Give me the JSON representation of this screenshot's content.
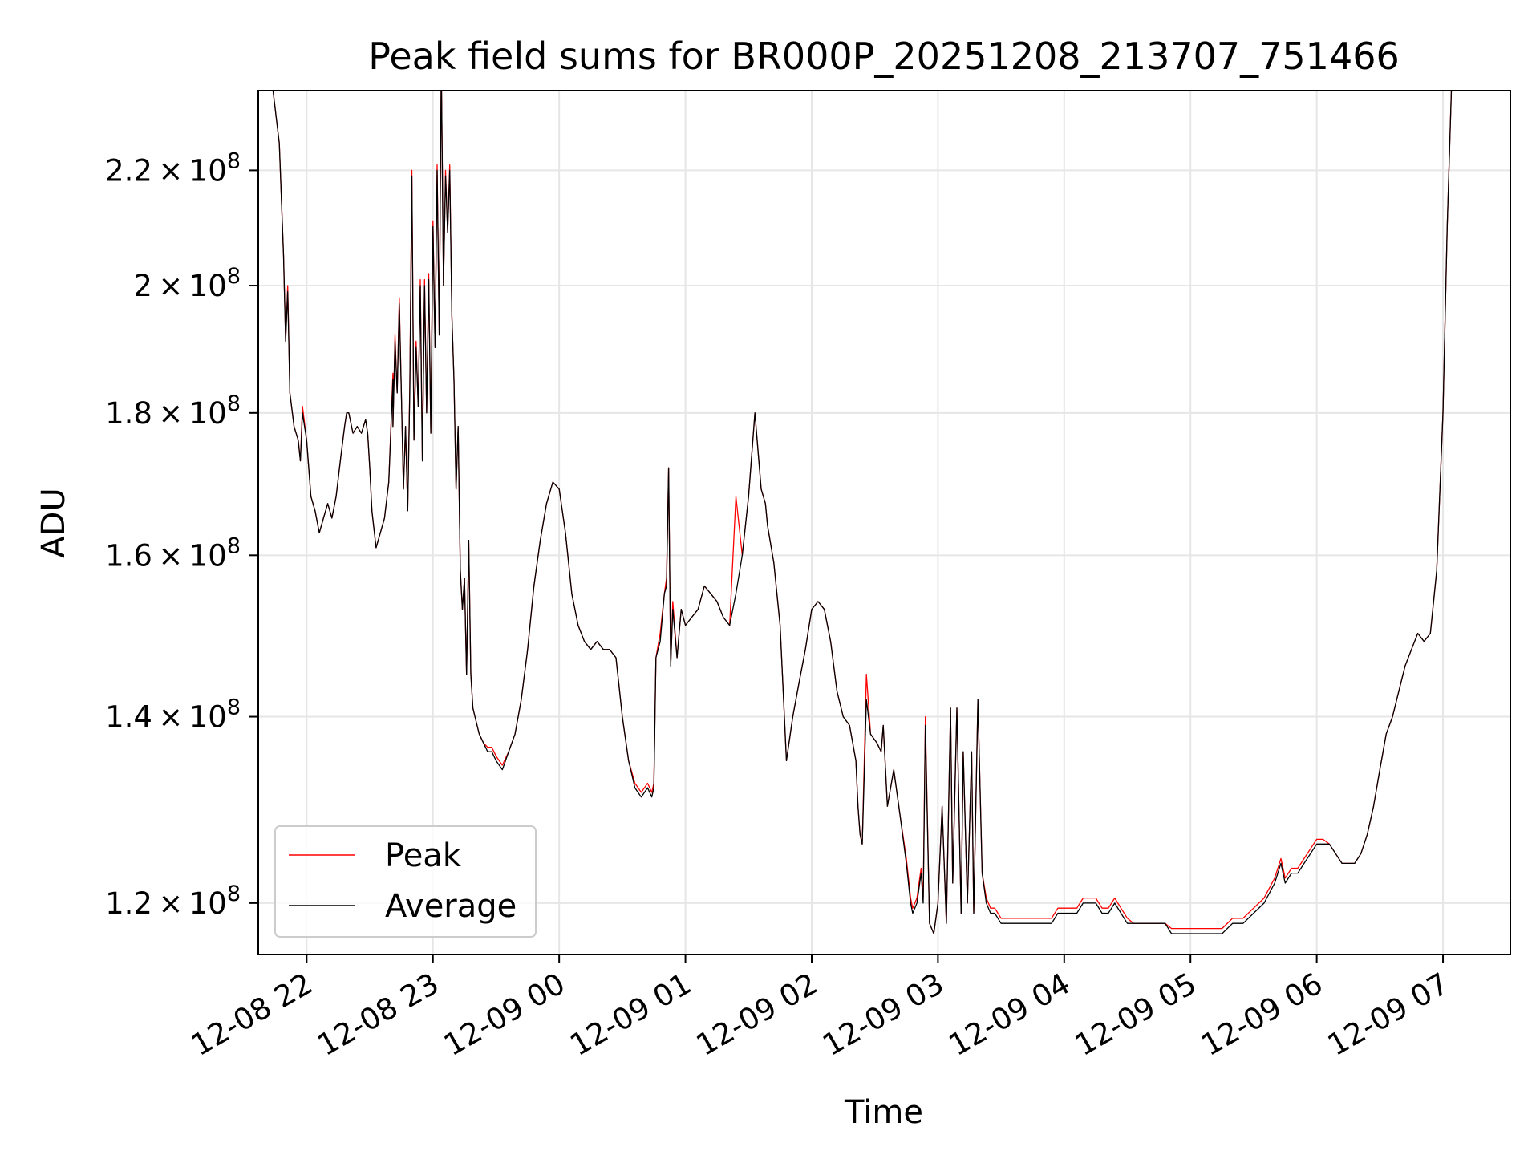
{
  "chart_data": {
    "type": "line",
    "title": "Peak field sums for BR000P_20251208_213707_751466",
    "xlabel": "Time",
    "ylabel": "ADU",
    "yscale": "log",
    "grid": true,
    "legend_position": "lower-left",
    "xlim": [
      "2025-12-08 21:37",
      "2025-12-09 07:32"
    ],
    "ylim": [
      115000000,
      235000000
    ],
    "x_ticks": [
      {
        "t": "2025-12-08 22:00",
        "label": "12-08 22"
      },
      {
        "t": "2025-12-08 23:00",
        "label": "12-08 23"
      },
      {
        "t": "2025-12-09 00:00",
        "label": "12-09 00"
      },
      {
        "t": "2025-12-09 01:00",
        "label": "12-09 01"
      },
      {
        "t": "2025-12-09 02:00",
        "label": "12-09 02"
      },
      {
        "t": "2025-12-09 03:00",
        "label": "12-09 03"
      },
      {
        "t": "2025-12-09 04:00",
        "label": "12-09 04"
      },
      {
        "t": "2025-12-09 05:00",
        "label": "12-09 05"
      },
      {
        "t": "2025-12-09 06:00",
        "label": "12-09 06"
      },
      {
        "t": "2025-12-09 07:00",
        "label": "12-09 07"
      }
    ],
    "y_ticks": [
      {
        "value": 120000000,
        "mantissa": "1.2",
        "exp": "8"
      },
      {
        "value": 140000000,
        "mantissa": "1.4",
        "exp": "8"
      },
      {
        "value": 160000000,
        "mantissa": "1.6",
        "exp": "8"
      },
      {
        "value": 180000000,
        "mantissa": "1.8",
        "exp": "8"
      },
      {
        "value": 200000000,
        "mantissa": "2",
        "exp": "8"
      },
      {
        "value": 220000000,
        "mantissa": "2.2",
        "exp": "8"
      }
    ],
    "y_tick_format": {
      "times": "×",
      "base": "10"
    },
    "series": [
      {
        "name": "Peak",
        "color": "#ff0000",
        "stroke_width": 1.3
      },
      {
        "name": "Average",
        "color": "#000000",
        "stroke_width": 1.3
      }
    ],
    "x": [
      "2025-12-08 21:37",
      "2025-12-08 21:44",
      "2025-12-08 21:47",
      "2025-12-08 21:49",
      "2025-12-08 21:50",
      "2025-12-08 21:51",
      "2025-12-08 21:52",
      "2025-12-08 21:54",
      "2025-12-08 21:56",
      "2025-12-08 21:57",
      "2025-12-08 21:58",
      "2025-12-08 22:00",
      "2025-12-08 22:02",
      "2025-12-08 22:04",
      "2025-12-08 22:06",
      "2025-12-08 22:08",
      "2025-12-08 22:10",
      "2025-12-08 22:12",
      "2025-12-08 22:14",
      "2025-12-08 22:16",
      "2025-12-08 22:18",
      "2025-12-08 22:19",
      "2025-12-08 22:20",
      "2025-12-08 22:22",
      "2025-12-08 22:24",
      "2025-12-08 22:26",
      "2025-12-08 22:28",
      "2025-12-08 22:29",
      "2025-12-08 22:30",
      "2025-12-08 22:31",
      "2025-12-08 22:33",
      "2025-12-08 22:35",
      "2025-12-08 22:37",
      "2025-12-08 22:39",
      "2025-12-08 22:41",
      "2025-12-08 22:41",
      "2025-12-08 22:42",
      "2025-12-08 22:43",
      "2025-12-08 22:44",
      "2025-12-08 22:45",
      "2025-12-08 22:46",
      "2025-12-08 22:47",
      "2025-12-08 22:48",
      "2025-12-08 22:49",
      "2025-12-08 22:50",
      "2025-12-08 22:51",
      "2025-12-08 22:52",
      "2025-12-08 22:53",
      "2025-12-08 22:54",
      "2025-12-08 22:55",
      "2025-12-08 22:56",
      "2025-12-08 22:57",
      "2025-12-08 22:58",
      "2025-12-08 22:59",
      "2025-12-08 23:00",
      "2025-12-08 23:01",
      "2025-12-08 23:02",
      "2025-12-08 23:03",
      "2025-12-08 23:04",
      "2025-12-08 23:05",
      "2025-12-08 23:06",
      "2025-12-08 23:07",
      "2025-12-08 23:08",
      "2025-12-08 23:09",
      "2025-12-08 23:10",
      "2025-12-08 23:11",
      "2025-12-08 23:12",
      "2025-12-08 23:13",
      "2025-12-08 23:14",
      "2025-12-08 23:15",
      "2025-12-08 23:16",
      "2025-12-08 23:17",
      "2025-12-08 23:18",
      "2025-12-08 23:19",
      "2025-12-08 23:20",
      "2025-12-08 23:21",
      "2025-12-08 23:22",
      "2025-12-08 23:24",
      "2025-12-08 23:26",
      "2025-12-08 23:28",
      "2025-12-08 23:30",
      "2025-12-08 23:33",
      "2025-12-08 23:36",
      "2025-12-08 23:39",
      "2025-12-08 23:42",
      "2025-12-08 23:45",
      "2025-12-08 23:48",
      "2025-12-08 23:51",
      "2025-12-08 23:54",
      "2025-12-08 23:57",
      "2025-12-09 00:00",
      "2025-12-09 00:03",
      "2025-12-09 00:06",
      "2025-12-09 00:09",
      "2025-12-09 00:12",
      "2025-12-09 00:15",
      "2025-12-09 00:18",
      "2025-12-09 00:21",
      "2025-12-09 00:24",
      "2025-12-09 00:27",
      "2025-12-09 00:30",
      "2025-12-09 00:33",
      "2025-12-09 00:36",
      "2025-12-09 00:39",
      "2025-12-09 00:42",
      "2025-12-09 00:44",
      "2025-12-09 00:45",
      "2025-12-09 00:46",
      "2025-12-09 00:48",
      "2025-12-09 00:50",
      "2025-12-09 00:51",
      "2025-12-09 00:52",
      "2025-12-09 00:53",
      "2025-12-09 00:54",
      "2025-12-09 00:56",
      "2025-12-09 00:58",
      "2025-12-09 01:00",
      "2025-12-09 01:03",
      "2025-12-09 01:06",
      "2025-12-09 01:09",
      "2025-12-09 01:12",
      "2025-12-09 01:15",
      "2025-12-09 01:18",
      "2025-12-09 01:21",
      "2025-12-09 01:24",
      "2025-12-09 01:27",
      "2025-12-09 01:30",
      "2025-12-09 01:33",
      "2025-12-09 01:36",
      "2025-12-09 01:38",
      "2025-12-09 01:39",
      "2025-12-09 01:42",
      "2025-12-09 01:45",
      "2025-12-09 01:48",
      "2025-12-09 01:51",
      "2025-12-09 01:54",
      "2025-12-09 01:57",
      "2025-12-09 02:00",
      "2025-12-09 02:03",
      "2025-12-09 02:06",
      "2025-12-09 02:09",
      "2025-12-09 02:12",
      "2025-12-09 02:15",
      "2025-12-09 02:18",
      "2025-12-09 02:21",
      "2025-12-09 02:22",
      "2025-12-09 02:23",
      "2025-12-09 02:24",
      "2025-12-09 02:26",
      "2025-12-09 02:28",
      "2025-12-09 02:31",
      "2025-12-09 02:33",
      "2025-12-09 02:34",
      "2025-12-09 02:36",
      "2025-12-09 02:39",
      "2025-12-09 02:42",
      "2025-12-09 02:45",
      "2025-12-09 02:47",
      "2025-12-09 02:48",
      "2025-12-09 02:50",
      "2025-12-09 02:52",
      "2025-12-09 02:53",
      "2025-12-09 02:54",
      "2025-12-09 02:56",
      "2025-12-09 02:58",
      "2025-12-09 03:00",
      "2025-12-09 03:02",
      "2025-12-09 03:04",
      "2025-12-09 03:06",
      "2025-12-09 03:07",
      "2025-12-09 03:09",
      "2025-12-09 03:11",
      "2025-12-09 03:12",
      "2025-12-09 03:14",
      "2025-12-09 03:16",
      "2025-12-09 03:17",
      "2025-12-09 03:19",
      "2025-12-09 03:21",
      "2025-12-09 03:23",
      "2025-12-09 03:25",
      "2025-12-09 03:27",
      "2025-12-09 03:30",
      "2025-12-09 03:33",
      "2025-12-09 03:36",
      "2025-12-09 03:39",
      "2025-12-09 03:42",
      "2025-12-09 03:45",
      "2025-12-09 03:48",
      "2025-12-09 03:51",
      "2025-12-09 03:54",
      "2025-12-09 03:57",
      "2025-12-09 04:00",
      "2025-12-09 04:03",
      "2025-12-09 04:06",
      "2025-12-09 04:09",
      "2025-12-09 04:12",
      "2025-12-09 04:15",
      "2025-12-09 04:18",
      "2025-12-09 04:21",
      "2025-12-09 04:24",
      "2025-12-09 04:27",
      "2025-12-09 04:30",
      "2025-12-09 04:33",
      "2025-12-09 04:36",
      "2025-12-09 04:39",
      "2025-12-09 04:42",
      "2025-12-09 04:45",
      "2025-12-09 04:48",
      "2025-12-09 04:51",
      "2025-12-09 04:54",
      "2025-12-09 04:57",
      "2025-12-09 05:00",
      "2025-12-09 05:05",
      "2025-12-09 05:10",
      "2025-12-09 05:15",
      "2025-12-09 05:20",
      "2025-12-09 05:25",
      "2025-12-09 05:30",
      "2025-12-09 05:35",
      "2025-12-09 05:40",
      "2025-12-09 05:43",
      "2025-12-09 05:45",
      "2025-12-09 05:48",
      "2025-12-09 05:51",
      "2025-12-09 05:54",
      "2025-12-09 05:57",
      "2025-12-09 06:00",
      "2025-12-09 06:03",
      "2025-12-09 06:06",
      "2025-12-09 06:09",
      "2025-12-09 06:12",
      "2025-12-09 06:15",
      "2025-12-09 06:18",
      "2025-12-09 06:21",
      "2025-12-09 06:24",
      "2025-12-09 06:27",
      "2025-12-09 06:30",
      "2025-12-09 06:33",
      "2025-12-09 06:36",
      "2025-12-09 06:39",
      "2025-12-09 06:42",
      "2025-12-09 06:45",
      "2025-12-09 06:48",
      "2025-12-09 06:51",
      "2025-12-09 06:54",
      "2025-12-09 06:57",
      "2025-12-09 07:00",
      "2025-12-09 07:02",
      "2025-12-09 07:04",
      "2025-12-09 07:06",
      "2025-12-09 07:08",
      "2025-12-09 07:10",
      "2025-12-09 07:12"
    ],
    "average": [
      235000000,
      235000000,
      225000000,
      205000000,
      191000000,
      199000000,
      183000000,
      178000000,
      176000000,
      173000000,
      180000000,
      176000000,
      168000000,
      166000000,
      163000000,
      165000000,
      167000000,
      165000000,
      168000000,
      173000000,
      178000000,
      180000000,
      180000000,
      177000000,
      178000000,
      177000000,
      179000000,
      177000000,
      172000000,
      166000000,
      161000000,
      163000000,
      165000000,
      170000000,
      185000000,
      178000000,
      191000000,
      183000000,
      197000000,
      183000000,
      169000000,
      178000000,
      166000000,
      183000000,
      219000000,
      176000000,
      190000000,
      181000000,
      200000000,
      173000000,
      200000000,
      180000000,
      201000000,
      177000000,
      210000000,
      190000000,
      220000000,
      192000000,
      240000000,
      200000000,
      219000000,
      209000000,
      220000000,
      195000000,
      185000000,
      169000000,
      178000000,
      158000000,
      153000000,
      157000000,
      145000000,
      162000000,
      145000000,
      141000000,
      140000000,
      139000000,
      138000000,
      137000000,
      136000000,
      136000000,
      135000000,
      134000000,
      136000000,
      138000000,
      142000000,
      148000000,
      156000000,
      162000000,
      167000000,
      170000000,
      169000000,
      163000000,
      155000000,
      151000000,
      149000000,
      148000000,
      149000000,
      148000000,
      148000000,
      147000000,
      140000000,
      135000000,
      132000000,
      131000000,
      132000000,
      131000000,
      132000000,
      147000000,
      149000000,
      155000000,
      156000000,
      172000000,
      146000000,
      153000000,
      147000000,
      153000000,
      151000000,
      152000000,
      153000000,
      156000000,
      155000000,
      154000000,
      152000000,
      151000000,
      155000000,
      160000000,
      168000000,
      180000000,
      169000000,
      167000000,
      164000000,
      159000000,
      151000000,
      135000000,
      140000000,
      144000000,
      148000000,
      153000000,
      154000000,
      153000000,
      149000000,
      143000000,
      140000000,
      139000000,
      135000000,
      130000000,
      127000000,
      126000000,
      142000000,
      138000000,
      137000000,
      136000000,
      139000000,
      130000000,
      134000000,
      129000000,
      124000000,
      120000000,
      119000000,
      120000000,
      123000000,
      120000000,
      139000000,
      118000000,
      117000000,
      120000000,
      130000000,
      118000000,
      141000000,
      122000000,
      141000000,
      119000000,
      136000000,
      120000000,
      136000000,
      119000000,
      142000000,
      123000000,
      120000000,
      119000000,
      119000000,
      118000000,
      118000000,
      118000000,
      118000000,
      118000000,
      118000000,
      118000000,
      118000000,
      118000000,
      119000000,
      119000000,
      119000000,
      119000000,
      120000000,
      120000000,
      120000000,
      119000000,
      119000000,
      120000000,
      119000000,
      118000000,
      118000000,
      118000000,
      118000000,
      118000000,
      118000000,
      118000000,
      117000000,
      117000000,
      117000000,
      117000000,
      117000000,
      117000000,
      117000000,
      118000000,
      118000000,
      119000000,
      120000000,
      122000000,
      124000000,
      122000000,
      123000000,
      123000000,
      124000000,
      125000000,
      126000000,
      126000000,
      126000000,
      125000000,
      124000000,
      124000000,
      124000000,
      125000000,
      127000000,
      130000000,
      134000000,
      138000000,
      140000000,
      143000000,
      146000000,
      148000000,
      150000000,
      149000000,
      150000000,
      158000000,
      180000000,
      210000000,
      235000000
    ],
    "peak": [
      235000000,
      235000000,
      225000000,
      205000000,
      191000000,
      200000000,
      183000000,
      178000000,
      176000000,
      173000000,
      181000000,
      176000000,
      168000000,
      166000000,
      163000000,
      165000000,
      167000000,
      165000000,
      168000000,
      173000000,
      178000000,
      180000000,
      180000000,
      177000000,
      178000000,
      177000000,
      179000000,
      177000000,
      172000000,
      166000000,
      161000000,
      163000000,
      165000000,
      170000000,
      186000000,
      178000000,
      192000000,
      183000000,
      198000000,
      183000000,
      169000000,
      178000000,
      166000000,
      184000000,
      220000000,
      176000000,
      191000000,
      181000000,
      201000000,
      173000000,
      201000000,
      180000000,
      202000000,
      177000000,
      211000000,
      190000000,
      221000000,
      192000000,
      240000000,
      200000000,
      220000000,
      209000000,
      221000000,
      195000000,
      185000000,
      169000000,
      178000000,
      158000000,
      153000000,
      157000000,
      145000000,
      162000000,
      145000000,
      141000000,
      140000000,
      139000000,
      138000000,
      137000000,
      136500000,
      136500000,
      135500000,
      134500000,
      136000000,
      138000000,
      142000000,
      148000000,
      156000000,
      162000000,
      167000000,
      170000000,
      169000000,
      163000000,
      155000000,
      151000000,
      149000000,
      148000000,
      149000000,
      148000000,
      148000000,
      147000000,
      140000000,
      135000000,
      132500000,
      131500000,
      132500000,
      131500000,
      132500000,
      147000000,
      150000000,
      155000000,
      157000000,
      172000000,
      146000000,
      154000000,
      147000000,
      153000000,
      151000000,
      152000000,
      153000000,
      156000000,
      155000000,
      154000000,
      152000000,
      151000000,
      168000000,
      160000000,
      168000000,
      180000000,
      169000000,
      167000000,
      164000000,
      159000000,
      151000000,
      135000000,
      140000000,
      144000000,
      148000000,
      153000000,
      154000000,
      153000000,
      149000000,
      143000000,
      140000000,
      139000000,
      135000000,
      130000000,
      127000000,
      126000000,
      145000000,
      138000000,
      137000000,
      136000000,
      139000000,
      130000000,
      134000000,
      129000000,
      124500000,
      120500000,
      119500000,
      120500000,
      123500000,
      120500000,
      140000000,
      118000000,
      117000000,
      120000000,
      130000000,
      118000000,
      141000000,
      122000000,
      141000000,
      119000000,
      136000000,
      120000000,
      136000000,
      119000000,
      142000000,
      123000000,
      120500000,
      119500000,
      119500000,
      118500000,
      118500000,
      118500000,
      118500000,
      118500000,
      118500000,
      118500000,
      118500000,
      118500000,
      119500000,
      119500000,
      119500000,
      119500000,
      120500000,
      120500000,
      120500000,
      119500000,
      119500000,
      120500000,
      119500000,
      118500000,
      118000000,
      118000000,
      118000000,
      118000000,
      118000000,
      118000000,
      117500000,
      117500000,
      117500000,
      117500000,
      117500000,
      117500000,
      117500000,
      118500000,
      118500000,
      119500000,
      120500000,
      122500000,
      124500000,
      122500000,
      123500000,
      123500000,
      124500000,
      125500000,
      126500000,
      126500000,
      126000000,
      125000000,
      124000000,
      124000000,
      124000000,
      125000000,
      127000000,
      130000000,
      134000000,
      138000000,
      140000000,
      143000000,
      146000000,
      148000000,
      150000000,
      149000000,
      150000000,
      158000000,
      180000000,
      210000000,
      235000000
    ]
  }
}
